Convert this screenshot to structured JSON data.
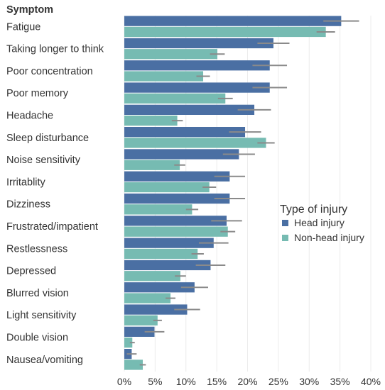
{
  "chart_data": {
    "type": "bar",
    "orientation": "horizontal",
    "ylabel": "Symptom",
    "categories": [
      "Fatigue",
      "Taking longer to think",
      "Poor concentration",
      "Poor memory",
      "Headache",
      "Sleep disturbance",
      "Noise sensitivity",
      "Irritablity",
      "Dizziness",
      "Frustrated/impatient",
      "Restlessness",
      "Depressed",
      "Blurred vision",
      "Light sensitivity",
      "Double vision",
      "Nausea/vomiting"
    ],
    "xlim": [
      0,
      40
    ],
    "xticks": [
      0,
      5,
      10,
      15,
      20,
      25,
      30,
      35,
      40
    ],
    "xtick_labels": [
      "0%",
      "5%",
      "10%",
      "15%",
      "20%",
      "25%",
      "30%",
      "35%",
      "40%"
    ],
    "grid": true,
    "legend_title": "Type of injury",
    "legend_position": "right",
    "series": [
      {
        "name": "Head injury",
        "color": "#4a6fa3",
        "values": [
          35.2,
          24.2,
          23.6,
          23.6,
          21.1,
          19.6,
          18.6,
          17.1,
          17.1,
          16.6,
          14.5,
          14.0,
          11.4,
          10.2,
          4.9,
          1.2
        ],
        "error": [
          2.9,
          2.6,
          2.8,
          2.8,
          2.7,
          2.6,
          2.6,
          2.5,
          2.5,
          2.5,
          2.4,
          2.4,
          2.2,
          2.1,
          1.6,
          0.8
        ]
      },
      {
        "name": "Non-head injury",
        "color": "#76bbb2",
        "values": [
          32.7,
          15.1,
          12.8,
          16.4,
          8.6,
          23.0,
          9.0,
          13.8,
          11.0,
          16.8,
          11.9,
          9.1,
          7.5,
          5.4,
          1.3,
          3.0
        ],
        "error": [
          1.5,
          1.2,
          1.1,
          1.2,
          0.9,
          1.4,
          0.9,
          1.1,
          1.0,
          1.2,
          1.0,
          0.9,
          0.8,
          0.7,
          0.4,
          0.5
        ]
      }
    ]
  }
}
